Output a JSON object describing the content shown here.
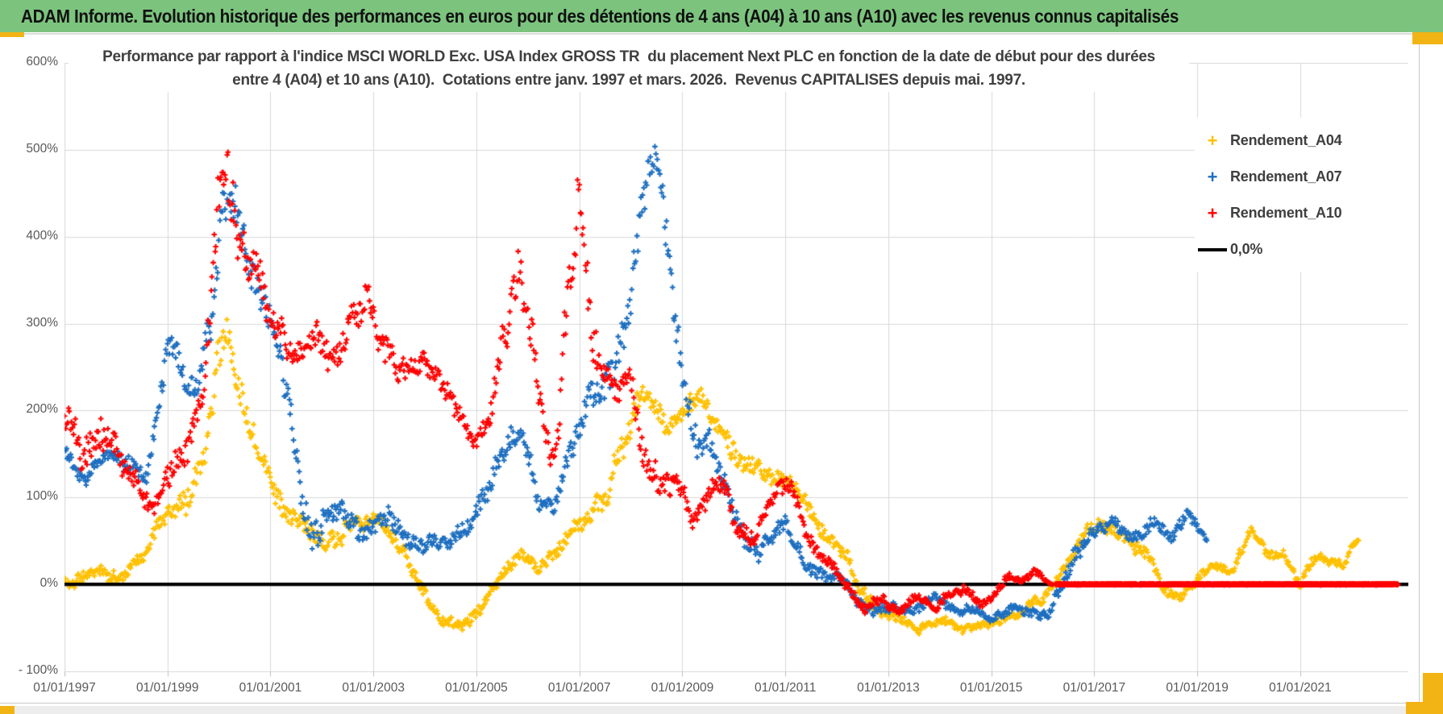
{
  "header": {
    "title": "ADAM Informe. Evolution historique des performances en euros pour des détentions de 4 ans (A04) à 10 ans (A10) avec les revenus connus capitalisés",
    "bg_color": "#7CC47E",
    "text_color": "#111111"
  },
  "frame": {
    "accent_color": "#F2B414"
  },
  "chart_data": {
    "type": "scatter",
    "title_line1": "Performance par rapport à l'indice MSCI WORLD Exc. USA Index GROSS TR  du placement Next PLC en fonction de la date de début pour des durées",
    "title_line2": "entre 4 (A04) et 10 ans (A10).  Cotations entre janv. 1997 et mars. 2026.  Revenus CAPITALISES depuis mai. 1997.",
    "marker": "plus",
    "grid": true,
    "grid_color": "#d9d9d9",
    "axis_text_color": "#595959",
    "x_axis": {
      "start_year": 1997.0,
      "end_year": 2023.1,
      "tick_years": [
        1997,
        1999,
        2001,
        2003,
        2005,
        2007,
        2009,
        2011,
        2013,
        2015,
        2017,
        2019,
        2021
      ],
      "tick_labels": [
        "01/01/1997",
        "01/01/1999",
        "01/01/2001",
        "01/01/2003",
        "01/01/2005",
        "01/01/2007",
        "01/01/2009",
        "01/01/2011",
        "01/01/2013",
        "01/01/2015",
        "01/01/2017",
        "01/01/2019",
        "01/01/2021"
      ]
    },
    "y_axis": {
      "min": -100,
      "max": 600,
      "step": 100,
      "tick_values": [
        600,
        500,
        400,
        300,
        200,
        100,
        0,
        -100
      ],
      "tick_labels": [
        "600%",
        "500%",
        "400%",
        "300%",
        "200%",
        "100%",
        "0%",
        "- 100%"
      ]
    },
    "legend": [
      {
        "label": "Rendement_A04",
        "color": "#FFC000",
        "marker": "plus"
      },
      {
        "label": "Rendement_A07",
        "color": "#1E6FC0",
        "marker": "plus"
      },
      {
        "label": "Rendement_A10",
        "color": "#FF0000",
        "marker": "plus"
      },
      {
        "label": "0,0%",
        "color": "#000000",
        "marker": "line"
      }
    ],
    "zero_line": {
      "value": 0,
      "color": "#000000"
    },
    "series_note": "keypoints are sampled envelope points read from the plot: [decimal_year, performance_pct, vertical_scatter_halfrange_pct]; weekly scatter oscillates around them",
    "series": [
      {
        "name": "Rendement_A04",
        "color": "#FFC000",
        "seed": 11,
        "points_per_year": 52,
        "keypoints": [
          [
            1997.0,
            2,
            10
          ],
          [
            1997.6,
            12,
            10
          ],
          [
            1998.0,
            5,
            12
          ],
          [
            1998.4,
            25,
            10
          ],
          [
            1999.0,
            75,
            18
          ],
          [
            1999.45,
            110,
            22
          ],
          [
            1999.75,
            160,
            25
          ],
          [
            2000.0,
            285,
            30
          ],
          [
            2000.15,
            300,
            25
          ],
          [
            2000.45,
            215,
            25
          ],
          [
            2000.8,
            150,
            20
          ],
          [
            2001.3,
            85,
            18
          ],
          [
            2001.8,
            55,
            15
          ],
          [
            2002.2,
            45,
            15
          ],
          [
            2002.6,
            70,
            15
          ],
          [
            2003.1,
            70,
            15
          ],
          [
            2003.4,
            55,
            12
          ],
          [
            2003.8,
            10,
            12
          ],
          [
            2004.3,
            -38,
            10
          ],
          [
            2004.7,
            -48,
            8
          ],
          [
            2005.1,
            -25,
            10
          ],
          [
            2005.5,
            15,
            10
          ],
          [
            2005.9,
            35,
            10
          ],
          [
            2006.2,
            15,
            10
          ],
          [
            2006.6,
            40,
            12
          ],
          [
            2007.0,
            65,
            15
          ],
          [
            2007.5,
            100,
            20
          ],
          [
            2007.9,
            165,
            25
          ],
          [
            2008.3,
            225,
            22
          ],
          [
            2008.7,
            180,
            20
          ],
          [
            2009.1,
            200,
            18
          ],
          [
            2009.4,
            215,
            15
          ],
          [
            2009.8,
            170,
            20
          ],
          [
            2010.3,
            135,
            18
          ],
          [
            2010.8,
            125,
            15
          ],
          [
            2011.1,
            120,
            12
          ],
          [
            2011.5,
            85,
            15
          ],
          [
            2012.0,
            45,
            12
          ],
          [
            2012.45,
            -5,
            10
          ],
          [
            2012.8,
            -32,
            8
          ],
          [
            2013.2,
            -40,
            8
          ],
          [
            2013.6,
            -52,
            6
          ],
          [
            2014.0,
            -40,
            8
          ],
          [
            2014.4,
            -48,
            7
          ],
          [
            2014.9,
            -42,
            7
          ],
          [
            2015.4,
            -35,
            8
          ],
          [
            2015.9,
            -18,
            8
          ],
          [
            2016.3,
            5,
            8
          ],
          [
            2016.8,
            55,
            12
          ],
          [
            2017.2,
            70,
            10
          ],
          [
            2017.6,
            55,
            10
          ],
          [
            2018.0,
            35,
            10
          ],
          [
            2018.4,
            -8,
            8
          ],
          [
            2018.7,
            -15,
            7
          ],
          [
            2019.0,
            5,
            8
          ],
          [
            2019.4,
            22,
            8
          ],
          [
            2019.7,
            12,
            6
          ],
          [
            2020.05,
            65,
            10
          ],
          [
            2020.15,
            55,
            8
          ],
          [
            2020.4,
            35,
            8
          ],
          [
            2020.7,
            32,
            8
          ],
          [
            2021.0,
            -2,
            7
          ],
          [
            2021.3,
            30,
            8
          ],
          [
            2021.6,
            28,
            8
          ],
          [
            2021.85,
            18,
            7
          ],
          [
            2022.0,
            42,
            8
          ],
          [
            2022.15,
            50,
            6
          ]
        ]
      },
      {
        "name": "Rendement_A07",
        "color": "#1E6FC0",
        "seed": 22,
        "points_per_year": 52,
        "keypoints": [
          [
            1997.0,
            158,
            12
          ],
          [
            1997.4,
            130,
            12
          ],
          [
            1997.8,
            150,
            15
          ],
          [
            1998.2,
            140,
            15
          ],
          [
            1998.6,
            118,
            12
          ],
          [
            1999.0,
            270,
            25
          ],
          [
            1999.15,
            260,
            25
          ],
          [
            1999.5,
            205,
            20
          ],
          [
            1999.9,
            330,
            35
          ],
          [
            2000.1,
            450,
            45
          ],
          [
            2000.3,
            430,
            40
          ],
          [
            2000.6,
            350,
            30
          ],
          [
            2001.0,
            290,
            30
          ],
          [
            2001.4,
            195,
            30
          ],
          [
            2001.75,
            60,
            30
          ],
          [
            2002.0,
            55,
            25
          ],
          [
            2002.4,
            80,
            20
          ],
          [
            2002.9,
            55,
            18
          ],
          [
            2003.3,
            75,
            15
          ],
          [
            2003.7,
            60,
            15
          ],
          [
            2004.1,
            55,
            15
          ],
          [
            2004.45,
            42,
            12
          ],
          [
            2004.9,
            75,
            18
          ],
          [
            2005.3,
            130,
            20
          ],
          [
            2005.85,
            185,
            20
          ],
          [
            2006.2,
            95,
            18
          ],
          [
            2006.5,
            90,
            15
          ],
          [
            2006.9,
            160,
            25
          ],
          [
            2007.2,
            210,
            25
          ],
          [
            2007.6,
            235,
            25
          ],
          [
            2008.0,
            330,
            35
          ],
          [
            2008.2,
            420,
            40
          ],
          [
            2008.4,
            490,
            30
          ],
          [
            2008.55,
            470,
            35
          ],
          [
            2008.75,
            370,
            35
          ],
          [
            2009.0,
            240,
            30
          ],
          [
            2009.3,
            165,
            25
          ],
          [
            2009.6,
            150,
            20
          ],
          [
            2009.9,
            110,
            20
          ],
          [
            2010.2,
            45,
            15
          ],
          [
            2010.5,
            40,
            15
          ],
          [
            2010.8,
            62,
            12
          ],
          [
            2011.0,
            68,
            12
          ],
          [
            2011.4,
            25,
            12
          ],
          [
            2011.8,
            5,
            10
          ],
          [
            2012.1,
            2,
            8
          ],
          [
            2012.4,
            -18,
            8
          ],
          [
            2012.7,
            -28,
            8
          ],
          [
            2013.1,
            -25,
            8
          ],
          [
            2013.5,
            -30,
            8
          ],
          [
            2013.9,
            -18,
            8
          ],
          [
            2014.3,
            -32,
            8
          ],
          [
            2014.7,
            -30,
            8
          ],
          [
            2015.0,
            -45,
            8
          ],
          [
            2015.4,
            -28,
            8
          ],
          [
            2015.8,
            -30,
            8
          ],
          [
            2016.1,
            -35,
            10
          ],
          [
            2016.4,
            8,
            12
          ],
          [
            2016.8,
            48,
            12
          ],
          [
            2017.1,
            62,
            12
          ],
          [
            2017.4,
            70,
            12
          ],
          [
            2017.7,
            52,
            10
          ],
          [
            2018.0,
            60,
            10
          ],
          [
            2018.2,
            75,
            10
          ],
          [
            2018.5,
            58,
            10
          ],
          [
            2018.8,
            82,
            8
          ],
          [
            2018.95,
            70,
            10
          ],
          [
            2019.1,
            58,
            8
          ],
          [
            2019.2,
            55,
            5
          ]
        ]
      },
      {
        "name": "Rendement_A10",
        "color": "#FF0000",
        "seed": 33,
        "points_per_year": 52,
        "zero_tail": [
          2016.25,
          2022.9
        ],
        "keypoints": [
          [
            1997.0,
            185,
            30
          ],
          [
            1997.1,
            200,
            35
          ],
          [
            1997.35,
            140,
            25
          ],
          [
            1997.6,
            150,
            25
          ],
          [
            1997.9,
            150,
            30
          ],
          [
            1998.2,
            135,
            25
          ],
          [
            1998.55,
            110,
            20
          ],
          [
            1998.75,
            88,
            15
          ],
          [
            1999.0,
            130,
            20
          ],
          [
            1999.4,
            160,
            25
          ],
          [
            1999.7,
            210,
            30
          ],
          [
            1999.95,
            420,
            60
          ],
          [
            2000.1,
            480,
            45
          ],
          [
            2000.25,
            430,
            50
          ],
          [
            2000.5,
            370,
            40
          ],
          [
            2000.8,
            350,
            35
          ],
          [
            2001.1,
            290,
            30
          ],
          [
            2001.4,
            255,
            25
          ],
          [
            2001.7,
            270,
            25
          ],
          [
            2002.0,
            290,
            30
          ],
          [
            2002.3,
            270,
            25
          ],
          [
            2002.6,
            300,
            28
          ],
          [
            2002.9,
            330,
            25
          ],
          [
            2003.1,
            290,
            25
          ],
          [
            2003.4,
            250,
            22
          ],
          [
            2003.7,
            255,
            20
          ],
          [
            2004.0,
            255,
            20
          ],
          [
            2004.3,
            240,
            20
          ],
          [
            2004.6,
            205,
            18
          ],
          [
            2004.9,
            170,
            15
          ],
          [
            2005.2,
            185,
            20
          ],
          [
            2005.55,
            270,
            35
          ],
          [
            2005.8,
            370,
            40
          ],
          [
            2005.95,
            330,
            40
          ],
          [
            2006.1,
            300,
            30
          ],
          [
            2006.3,
            185,
            25
          ],
          [
            2006.55,
            150,
            20
          ],
          [
            2006.9,
            440,
            70
          ],
          [
            2007.0,
            420,
            60
          ],
          [
            2007.2,
            300,
            40
          ],
          [
            2007.45,
            235,
            30
          ],
          [
            2007.7,
            215,
            25
          ],
          [
            2008.0,
            225,
            25
          ],
          [
            2008.3,
            150,
            25
          ],
          [
            2008.6,
            120,
            20
          ],
          [
            2008.9,
            110,
            20
          ],
          [
            2009.2,
            75,
            18
          ],
          [
            2009.5,
            100,
            18
          ],
          [
            2009.8,
            110,
            15
          ],
          [
            2010.1,
            60,
            15
          ],
          [
            2010.4,
            50,
            12
          ],
          [
            2010.7,
            95,
            15
          ],
          [
            2011.0,
            120,
            15
          ],
          [
            2011.2,
            95,
            15
          ],
          [
            2011.5,
            50,
            12
          ],
          [
            2011.9,
            15,
            10
          ],
          [
            2012.2,
            -8,
            8
          ],
          [
            2012.6,
            -30,
            8
          ],
          [
            2012.9,
            -18,
            8
          ],
          [
            2013.2,
            -28,
            7
          ],
          [
            2013.6,
            -12,
            8
          ],
          [
            2013.9,
            -22,
            7
          ],
          [
            2014.2,
            -12,
            7
          ],
          [
            2014.5,
            -8,
            7
          ],
          [
            2014.8,
            -28,
            7
          ],
          [
            2015.1,
            -8,
            7
          ],
          [
            2015.35,
            10,
            7
          ],
          [
            2015.6,
            2,
            6
          ],
          [
            2015.85,
            18,
            6
          ],
          [
            2016.05,
            5,
            5
          ],
          [
            2016.2,
            0,
            2
          ]
        ]
      }
    ]
  }
}
